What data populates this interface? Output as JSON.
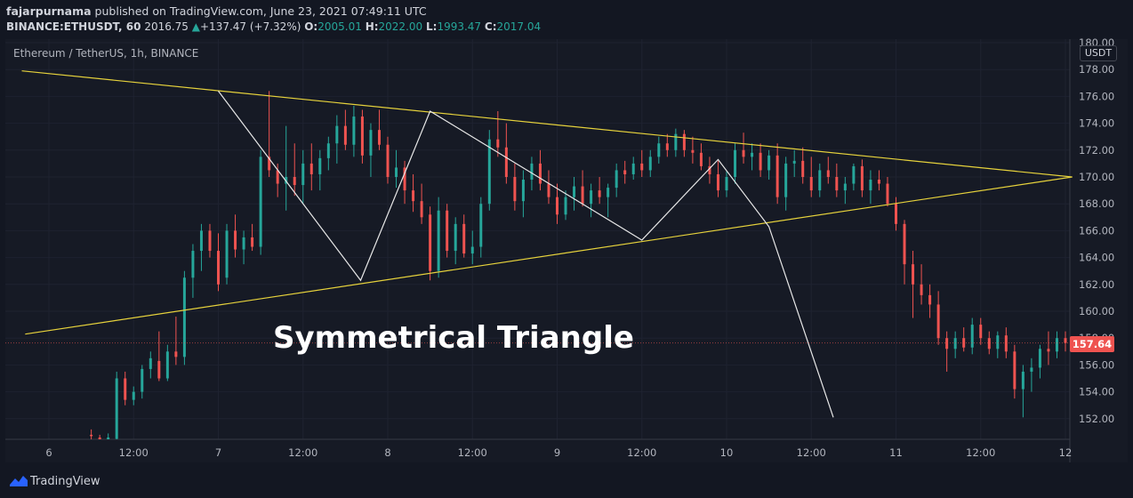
{
  "header": {
    "publisher": "fajarpurnama",
    "published_text": " published on TradingView.com, June 23, 2021 07:49:11 UTC",
    "symbol": "BINANCE:ETHUSDT, 60",
    "price": "2016.75",
    "change": "+137.47 (+7.32%)",
    "o_label": "O:",
    "o_value": "2005.01",
    "h_label": "H:",
    "h_value": "2022.00",
    "l_label": "L:",
    "l_value": "1993.47",
    "c_label": "C:",
    "c_value": "2017.04"
  },
  "chart_title": "Ethereum / TetherUS, 1h, BINANCE",
  "currency_badge": "USDT",
  "last_price": "157.64",
  "annotation": "Symmetrical Triangle",
  "footer": {
    "brand": "TradingView"
  },
  "colors": {
    "up": "#26a69a",
    "down": "#ef5350",
    "trendline": "#e6d23c",
    "zigzag": "#e8e8e8",
    "background": "#161a25"
  },
  "chart_data": {
    "type": "candlestick",
    "y_axis": {
      "ticks": [
        "180.00",
        "178.00",
        "176.00",
        "174.00",
        "172.00",
        "170.00",
        "168.00",
        "166.00",
        "164.00",
        "162.00",
        "160.00",
        "158.00",
        "156.00",
        "154.00",
        "152.00"
      ],
      "min": 150.5,
      "max": 180.3
    },
    "x_axis": {
      "ticks": [
        "6",
        "12:00",
        "7",
        "12:00",
        "8",
        "12:00",
        "9",
        "12:00",
        "10",
        "12:00",
        "11",
        "12:00",
        "12"
      ]
    },
    "trendlines": [
      {
        "name": "upper",
        "from": [
          -0.16,
          177.9
        ],
        "to": [
          6.04,
          170.0
        ]
      },
      {
        "name": "lower",
        "from": [
          -0.14,
          158.3
        ],
        "to": [
          6.04,
          170.0
        ]
      }
    ],
    "zigzag": [
      [
        1.0,
        176.4
      ],
      [
        1.84,
        162.3
      ],
      [
        2.25,
        174.9
      ],
      [
        3.5,
        165.3
      ],
      [
        3.95,
        171.3
      ],
      [
        4.25,
        166.3
      ],
      [
        4.63,
        152.1
      ]
    ],
    "candles": [
      [
        0.25,
        150.8,
        151.2,
        150.2,
        150.7
      ],
      [
        0.3,
        150.6,
        150.8,
        150.1,
        150.3
      ],
      [
        0.35,
        150.2,
        150.9,
        149.9,
        150.6
      ],
      [
        0.4,
        150.5,
        155.5,
        150.3,
        155.0
      ],
      [
        0.45,
        155.0,
        155.5,
        153.0,
        153.4
      ],
      [
        0.5,
        153.4,
        154.4,
        153.0,
        154.0
      ],
      [
        0.55,
        154.0,
        156.0,
        153.5,
        155.7
      ],
      [
        0.6,
        155.7,
        157.0,
        155.0,
        156.5
      ],
      [
        0.65,
        156.3,
        158.5,
        154.8,
        155.0
      ],
      [
        0.7,
        155.0,
        157.5,
        154.8,
        157.0
      ],
      [
        0.75,
        157.0,
        159.6,
        156.0,
        156.6
      ],
      [
        0.8,
        156.6,
        163.0,
        156.0,
        162.5
      ],
      [
        0.85,
        162.5,
        165.0,
        161.0,
        164.5
      ],
      [
        0.9,
        164.5,
        166.5,
        163.0,
        166.0
      ],
      [
        0.95,
        166.0,
        166.5,
        164.0,
        164.5
      ],
      [
        1.0,
        164.5,
        165.8,
        161.5,
        162.0
      ],
      [
        1.05,
        162.5,
        166.5,
        162.0,
        166.0
      ],
      [
        1.1,
        166.0,
        167.2,
        164.0,
        164.6
      ],
      [
        1.15,
        164.6,
        166.0,
        163.5,
        165.5
      ],
      [
        1.2,
        165.5,
        166.5,
        164.5,
        164.8
      ],
      [
        1.25,
        164.8,
        172.0,
        164.2,
        171.5
      ],
      [
        1.3,
        171.5,
        176.4,
        170.0,
        170.5
      ],
      [
        1.35,
        170.5,
        171.0,
        168.5,
        169.5
      ],
      [
        1.4,
        169.5,
        173.8,
        167.5,
        170.0
      ],
      [
        1.45,
        170.0,
        172.5,
        168.6,
        169.4
      ],
      [
        1.5,
        169.4,
        172.0,
        168.0,
        171.0
      ],
      [
        1.55,
        171.0,
        172.5,
        169.0,
        170.2
      ],
      [
        1.6,
        170.2,
        172.0,
        169.0,
        171.4
      ],
      [
        1.65,
        171.4,
        173.0,
        170.5,
        172.5
      ],
      [
        1.7,
        172.5,
        174.6,
        171.0,
        173.8
      ],
      [
        1.75,
        173.8,
        175.0,
        172.0,
        172.4
      ],
      [
        1.8,
        172.4,
        175.3,
        171.5,
        174.5
      ],
      [
        1.85,
        174.5,
        175.0,
        171.0,
        171.6
      ],
      [
        1.9,
        171.6,
        174.0,
        170.0,
        173.5
      ],
      [
        1.95,
        173.5,
        175.0,
        172.0,
        172.4
      ],
      [
        2.0,
        172.4,
        173.0,
        169.5,
        170.0
      ],
      [
        2.05,
        170.0,
        172.0,
        169.2,
        170.7
      ],
      [
        2.1,
        170.7,
        171.2,
        168.0,
        169.0
      ],
      [
        2.15,
        169.0,
        170.2,
        167.4,
        168.2
      ],
      [
        2.2,
        168.2,
        169.5,
        166.5,
        167.0
      ],
      [
        2.25,
        167.2,
        167.8,
        162.3,
        163.0
      ],
      [
        2.3,
        163.0,
        168.5,
        162.5,
        167.5
      ],
      [
        2.35,
        167.5,
        168.0,
        164.0,
        164.5
      ],
      [
        2.4,
        164.5,
        167.0,
        163.5,
        166.5
      ],
      [
        2.45,
        166.5,
        167.2,
        164.0,
        164.3
      ],
      [
        2.5,
        164.3,
        166.0,
        163.5,
        164.8
      ],
      [
        2.55,
        164.8,
        168.5,
        164.0,
        168.0
      ],
      [
        2.6,
        168.0,
        173.5,
        167.5,
        172.8
      ],
      [
        2.65,
        172.8,
        174.9,
        171.5,
        172.2
      ],
      [
        2.7,
        172.2,
        174.0,
        169.5,
        170.0
      ],
      [
        2.75,
        170.0,
        171.0,
        167.5,
        168.2
      ],
      [
        2.8,
        168.2,
        170.5,
        167.0,
        169.8
      ],
      [
        2.85,
        169.8,
        171.5,
        169.0,
        171.0
      ],
      [
        2.9,
        171.0,
        172.0,
        169.0,
        169.5
      ],
      [
        2.95,
        169.5,
        170.5,
        168.0,
        168.5
      ],
      [
        3.0,
        168.5,
        169.5,
        166.5,
        167.2
      ],
      [
        3.05,
        167.2,
        169.0,
        166.8,
        168.5
      ],
      [
        3.1,
        168.5,
        170.0,
        167.5,
        169.3
      ],
      [
        3.15,
        169.3,
        170.5,
        167.8,
        168.0
      ],
      [
        3.2,
        168.0,
        169.5,
        167.0,
        169.0
      ],
      [
        3.25,
        169.0,
        170.0,
        168.0,
        168.5
      ],
      [
        3.3,
        168.5,
        169.5,
        167.0,
        169.2
      ],
      [
        3.35,
        169.2,
        171.0,
        168.5,
        170.5
      ],
      [
        3.4,
        170.5,
        171.2,
        169.5,
        170.2
      ],
      [
        3.45,
        170.2,
        171.5,
        169.8,
        171.0
      ],
      [
        3.5,
        171.0,
        172.0,
        170.0,
        170.5
      ],
      [
        3.55,
        170.5,
        172.0,
        170.0,
        171.5
      ],
      [
        3.6,
        171.5,
        173.0,
        171.0,
        172.5
      ],
      [
        3.65,
        172.5,
        173.2,
        171.5,
        172.0
      ],
      [
        3.7,
        172.0,
        173.6,
        171.5,
        173.2
      ],
      [
        3.75,
        173.2,
        173.5,
        171.5,
        172.0
      ],
      [
        3.8,
        172.0,
        173.0,
        171.0,
        171.8
      ],
      [
        3.85,
        171.8,
        172.5,
        170.5,
        170.8
      ],
      [
        3.9,
        170.8,
        171.5,
        169.5,
        170.2
      ],
      [
        3.95,
        170.2,
        171.2,
        168.5,
        169.0
      ],
      [
        4.0,
        169.0,
        170.5,
        168.5,
        170.0
      ],
      [
        4.05,
        170.0,
        172.5,
        169.5,
        172.0
      ],
      [
        4.1,
        172.0,
        173.3,
        171.0,
        171.5
      ],
      [
        4.15,
        171.5,
        172.5,
        170.5,
        171.8
      ],
      [
        4.2,
        171.8,
        172.5,
        170.0,
        170.5
      ],
      [
        4.25,
        170.5,
        172.0,
        169.8,
        171.6
      ],
      [
        4.3,
        171.6,
        172.5,
        168.0,
        168.5
      ],
      [
        4.35,
        168.5,
        171.5,
        167.5,
        171.0
      ],
      [
        4.4,
        171.0,
        172.0,
        170.0,
        171.2
      ],
      [
        4.45,
        171.2,
        172.2,
        169.5,
        170.0
      ],
      [
        4.5,
        170.0,
        171.5,
        168.5,
        169.0
      ],
      [
        4.55,
        169.0,
        171.0,
        168.5,
        170.5
      ],
      [
        4.6,
        170.5,
        171.5,
        169.5,
        170.0
      ],
      [
        4.65,
        170.0,
        171.0,
        168.5,
        169.0
      ],
      [
        4.7,
        169.0,
        170.0,
        168.0,
        169.5
      ],
      [
        4.75,
        169.5,
        171.0,
        169.0,
        170.8
      ],
      [
        4.8,
        170.8,
        171.3,
        168.5,
        169.0
      ],
      [
        4.85,
        169.0,
        170.5,
        168.0,
        169.8
      ],
      [
        4.9,
        169.8,
        170.5,
        169.0,
        169.5
      ],
      [
        4.95,
        169.5,
        170.0,
        167.8,
        168.0
      ],
      [
        5.0,
        168.0,
        168.5,
        166.0,
        166.5
      ],
      [
        5.05,
        166.5,
        166.8,
        162.0,
        163.5
      ],
      [
        5.1,
        163.5,
        164.5,
        159.5,
        162.0
      ],
      [
        5.15,
        162.0,
        163.5,
        160.5,
        161.2
      ],
      [
        5.2,
        161.2,
        162.0,
        159.5,
        160.5
      ],
      [
        5.25,
        160.5,
        161.5,
        157.5,
        158.0
      ],
      [
        5.3,
        158.0,
        158.5,
        155.5,
        157.2
      ],
      [
        5.35,
        157.2,
        158.5,
        156.5,
        158.0
      ],
      [
        5.4,
        158.0,
        158.8,
        157.0,
        157.3
      ],
      [
        5.45,
        157.3,
        159.5,
        156.8,
        159.0
      ],
      [
        5.5,
        159.0,
        159.5,
        157.5,
        158.0
      ],
      [
        5.55,
        158.0,
        158.5,
        156.8,
        157.2
      ],
      [
        5.6,
        157.2,
        158.5,
        156.5,
        158.2
      ],
      [
        5.65,
        158.2,
        158.8,
        156.5,
        157.0
      ],
      [
        5.7,
        157.0,
        157.5,
        153.5,
        154.2
      ],
      [
        5.75,
        154.2,
        156.0,
        152.1,
        155.5
      ],
      [
        5.8,
        155.5,
        156.5,
        154.0,
        155.8
      ],
      [
        5.85,
        155.8,
        157.5,
        155.0,
        157.2
      ],
      [
        5.9,
        157.2,
        158.5,
        156.0,
        157.0
      ],
      [
        5.95,
        157.0,
        158.5,
        156.5,
        158.0
      ],
      [
        6.0,
        158.0,
        158.5,
        157.0,
        157.64
      ]
    ]
  }
}
